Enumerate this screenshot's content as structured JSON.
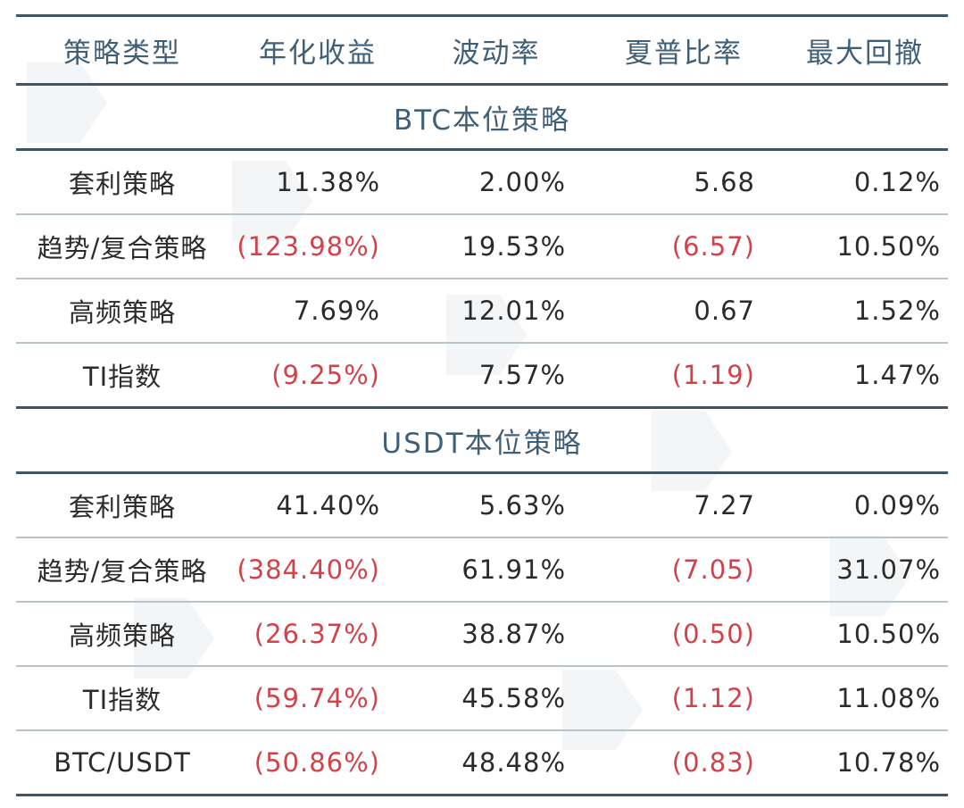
{
  "table": {
    "headers": [
      "策略类型",
      "年化收益",
      "波动率",
      "夏普比率",
      "最大回撤"
    ],
    "sections": [
      {
        "title": "BTC本位策略",
        "rows": [
          {
            "name": "套利策略",
            "annual_return": "11.38%",
            "volatility": "2.00%",
            "sharpe": "5.68",
            "max_drawdown": "0.12%"
          },
          {
            "name": "趋势/复合策略",
            "annual_return": "(123.98%)",
            "volatility": "19.53%",
            "sharpe": "(6.57)",
            "max_drawdown": "10.50%"
          },
          {
            "name": "高频策略",
            "annual_return": "7.69%",
            "volatility": "12.01%",
            "sharpe": "0.67",
            "max_drawdown": "1.52%"
          },
          {
            "name": "TI指数",
            "annual_return": "(9.25%)",
            "volatility": "7.57%",
            "sharpe": "(1.19)",
            "max_drawdown": "1.47%"
          }
        ]
      },
      {
        "title": "USDT本位策略",
        "rows": [
          {
            "name": "套利策略",
            "annual_return": "41.40%",
            "volatility": "5.63%",
            "sharpe": "7.27",
            "max_drawdown": "0.09%"
          },
          {
            "name": "趋势/复合策略",
            "annual_return": "(384.40%)",
            "volatility": "61.91%",
            "sharpe": "(7.05)",
            "max_drawdown": "31.07%"
          },
          {
            "name": "高频策略",
            "annual_return": "(26.37%)",
            "volatility": "38.87%",
            "sharpe": "(0.50)",
            "max_drawdown": "10.50%"
          },
          {
            "name": "TI指数",
            "annual_return": "(59.74%)",
            "volatility": "45.58%",
            "sharpe": "(1.12)",
            "max_drawdown": "11.08%"
          },
          {
            "name": "BTC/USDT",
            "annual_return": "(50.86%)",
            "volatility": "48.48%",
            "sharpe": "(0.83)",
            "max_drawdown": "10.78%"
          }
        ]
      }
    ]
  },
  "colors": {
    "header_text": "#3f5f78",
    "rule": "#3d5566",
    "negative": "#d2424a",
    "body_text": "#2b2b2b"
  }
}
